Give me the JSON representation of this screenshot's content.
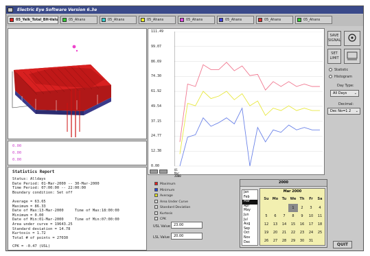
{
  "window": {
    "title": "Electric Eye Software Version 6.3e"
  },
  "tabs": [
    {
      "label": "05_Yelk_Total_BH-Value",
      "color": "#dd2222",
      "active": true
    },
    {
      "label": "05_Ahans",
      "color": "#33cc33"
    },
    {
      "label": "05_Ahans",
      "color": "#33cccc"
    },
    {
      "label": "05_Ahans",
      "color": "#eeee22"
    },
    {
      "label": "05_Ahans",
      "color": "#dd44dd"
    },
    {
      "label": "05_Ahans",
      "color": "#4444dd"
    },
    {
      "label": "05_Ahans",
      "color": "#dd3333"
    },
    {
      "label": "05_Ahans",
      "color": "#33cc33"
    }
  ],
  "legend_values": [
    "0.00",
    "0.00",
    "0.00"
  ],
  "stats": {
    "heading": "Statistics Report",
    "lines": [
      "Status: Alldays",
      "Date Period: 01-Mar-2000 -- 30-Mar-2000",
      "Time Period: 07:00:00 -- 22:00:00",
      "Boundary condition: Set off",
      "",
      "Average = 63.65",
      "Maximum = 86.33",
      "Date of Max:13-Mar-2000     Time of Max:18:00:00",
      "Minimum = 0.00",
      "Date of Min:01-Mar-2000     Time of Min:07:00:00",
      "Area under curve = 19643.25",
      "Standard deviation = 14.78",
      "Kurtosis = 1.72",
      "Total # of points = 27030"
    ],
    "cpk": "CPK = -0.47 (USL)"
  },
  "chart_data": {
    "type": "line",
    "y_ticks": [
      "111.49",
      "99.07",
      "86.69",
      "74.30",
      "61.92",
      "49.54",
      "37.15",
      "24.77",
      "12.38",
      "0.00"
    ],
    "x_first_label": "01\nMar\n2000",
    "ylim": [
      0,
      111.49
    ],
    "grid": true,
    "series": [
      {
        "color": "#f07890",
        "values": [
          20,
          68,
          66,
          84,
          80,
          80,
          86,
          79,
          83,
          75,
          76,
          63,
          70,
          66,
          70,
          66,
          68,
          66,
          66
        ]
      },
      {
        "color": "#e8e840",
        "values": [
          10,
          52,
          50,
          62,
          56,
          58,
          62,
          55,
          60,
          50,
          54,
          42,
          48,
          46,
          50,
          46,
          48,
          46,
          46
        ]
      },
      {
        "color": "#6a82e8",
        "values": [
          0,
          24,
          26,
          40,
          33,
          36,
          40,
          35,
          48,
          0,
          32,
          20,
          30,
          28,
          34,
          30,
          32,
          30,
          30
        ]
      }
    ]
  },
  "checks": [
    {
      "label": "Maximum",
      "color": "#dd2222"
    },
    {
      "label": "Minimum",
      "color": "#2244dd"
    },
    {
      "label": "Average",
      "color": "#dddd22"
    },
    {
      "label": "Area Under Curve",
      "color": "#dddddd"
    },
    {
      "label": "Standard Deviation",
      "color": "#dddddd"
    },
    {
      "label": "Kurtosis",
      "color": "#dddddd"
    },
    {
      "label": "CPK",
      "color": "#dddddd"
    }
  ],
  "usl": {
    "label": "USL Value",
    "value": "23.00"
  },
  "lsl": {
    "label": "LSL Value",
    "value": "20.00"
  },
  "calendar": {
    "year": "2000",
    "title": "Mar 2000",
    "months": [
      "Jan",
      "Feb",
      "Mar",
      "Apr",
      "May",
      "Jun",
      "Jul",
      "Aug",
      "Sep",
      "Oct",
      "Nov",
      "Dec"
    ],
    "selected_month": 2,
    "day_headers": [
      "Su",
      "Mo",
      "Tu",
      "We",
      "Th",
      "Fr",
      "Sa"
    ],
    "rows": [
      [
        "",
        "",
        "",
        "1",
        "2",
        "3",
        "4"
      ],
      [
        "5",
        "6",
        "7",
        "8",
        "9",
        "10",
        "11"
      ],
      [
        "12",
        "13",
        "14",
        "15",
        "16",
        "17",
        "18"
      ],
      [
        "19",
        "20",
        "21",
        "22",
        "23",
        "24",
        "25"
      ],
      [
        "26",
        "27",
        "28",
        "29",
        "30",
        "31",
        ""
      ]
    ],
    "highlight_day": "1"
  },
  "right": {
    "save_label": "SAVE\nSIGNAL",
    "set_limit_label": "SET\nLIMIT",
    "radio_statistic": "Statistic",
    "radio_histogram": "Histogram",
    "daytype_label": "Day Type:",
    "daytype_value": "All Days",
    "decimal_label": "Decimal:",
    "decimal_value": "Dec No=1  2"
  },
  "quit_label": "QUIT"
}
